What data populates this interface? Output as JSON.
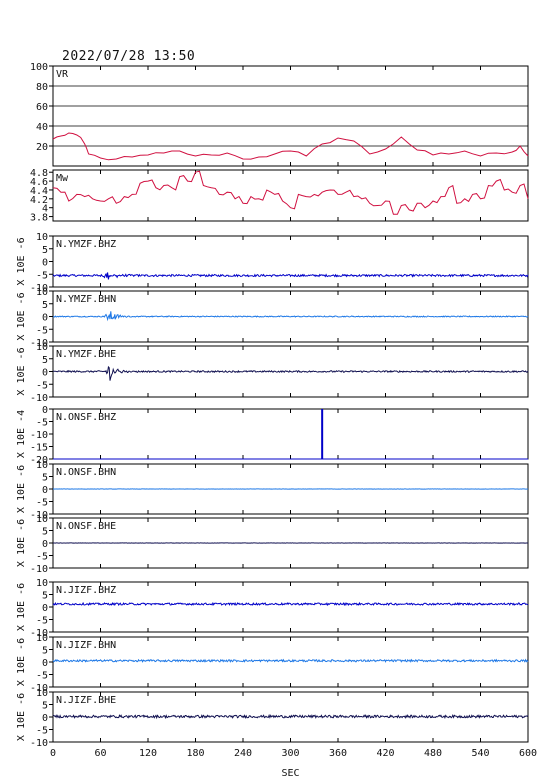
{
  "header": {
    "timestamp": "2022/07/28 13:50"
  },
  "colors": {
    "vr": "#d01040",
    "mw": "#d01040",
    "bhz": "#0000c8",
    "bhn": "#1e78e6",
    "bhe": "#101050",
    "grid": "#000000"
  },
  "chart_data": {
    "type": "line",
    "xlabel": "SEC",
    "xlim": [
      0,
      600
    ],
    "xticks": [
      "0",
      "60",
      "120",
      "180",
      "240",
      "300",
      "360",
      "420",
      "480",
      "540",
      "600"
    ],
    "panels": [
      {
        "id": "vr",
        "label": "VR",
        "ylabel": "",
        "ylim": [
          0,
          100
        ],
        "yticks": [
          "100",
          "80",
          "60",
          "40",
          "20"
        ],
        "grid": true,
        "color": "vr",
        "x": [
          0,
          10,
          20,
          30,
          40,
          45,
          60,
          80,
          100,
          120,
          140,
          160,
          180,
          200,
          220,
          240,
          260,
          280,
          300,
          320,
          340,
          360,
          380,
          400,
          420,
          440,
          460,
          480,
          500,
          520,
          540,
          560,
          580,
          590,
          600
        ],
        "y": [
          27,
          30,
          33,
          31,
          22,
          12,
          8,
          7,
          9,
          11,
          13,
          15,
          10,
          11,
          13,
          7,
          9,
          12,
          15,
          10,
          22,
          28,
          25,
          12,
          17,
          29,
          16,
          11,
          12,
          15,
          10,
          13,
          14,
          20,
          10
        ]
      },
      {
        "id": "mw",
        "label": "Mw",
        "ylabel": "",
        "ylim": [
          3.7,
          4.85
        ],
        "yticks": [
          "4.8",
          "4.6",
          "4.4",
          "4.2",
          "4",
          "3.8"
        ],
        "grid": false,
        "color": "mw",
        "x": [
          0,
          10,
          20,
          30,
          40,
          50,
          60,
          70,
          80,
          90,
          100,
          110,
          120,
          130,
          140,
          150,
          160,
          170,
          180,
          190,
          200,
          210,
          220,
          230,
          240,
          250,
          260,
          270,
          280,
          290,
          300,
          310,
          320,
          330,
          340,
          350,
          360,
          370,
          380,
          390,
          400,
          410,
          420,
          430,
          440,
          450,
          460,
          470,
          480,
          490,
          500,
          510,
          520,
          530,
          540,
          550,
          560,
          570,
          580,
          590,
          600
        ],
        "y": [
          4.45,
          4.35,
          4.15,
          4.3,
          4.25,
          4.2,
          4.15,
          4.2,
          4.1,
          4.25,
          4.3,
          4.55,
          4.6,
          4.45,
          4.5,
          4.45,
          4.7,
          4.6,
          4.8,
          4.5,
          4.45,
          4.3,
          4.35,
          4.2,
          4.1,
          4.25,
          4.2,
          4.4,
          4.3,
          4.15,
          4.0,
          4.3,
          4.25,
          4.3,
          4.35,
          4.4,
          4.3,
          4.35,
          4.25,
          4.2,
          4.1,
          4.05,
          4.15,
          3.85,
          4.05,
          3.95,
          4.1,
          4.0,
          4.15,
          4.25,
          4.45,
          4.1,
          4.2,
          4.3,
          4.2,
          4.5,
          4.6,
          4.4,
          4.35,
          4.5,
          4.2
        ]
      },
      {
        "id": "ymz-bhz",
        "label": "N.YMZF.BHZ",
        "ylabel": "X 10E -6",
        "ylim": [
          -10,
          10
        ],
        "yticks": [
          "10",
          "5",
          "0",
          "-5",
          "-10"
        ],
        "grid": false,
        "color": "bhz",
        "baseline": -5.5,
        "noise": 0.4,
        "burst": {
          "x": 70,
          "amp": 1.7
        },
        "spike": null
      },
      {
        "id": "ymz-bhn",
        "label": "N.YMZF.BHN",
        "ylabel": "X 10E -6",
        "ylim": [
          -10,
          10
        ],
        "yticks": [
          "10",
          "5",
          "0",
          "-5",
          "-10"
        ],
        "grid": false,
        "color": "bhn",
        "baseline": 0,
        "noise": 0.2,
        "burst": {
          "x": 72,
          "amp": 2.4
        },
        "spike": null
      },
      {
        "id": "ymz-bhe",
        "label": "N.YMZF.BHE",
        "ylabel": "X 10E -6",
        "ylim": [
          -10,
          10
        ],
        "yticks": [
          "10",
          "5",
          "0",
          "-5",
          "-10"
        ],
        "grid": false,
        "color": "bhe",
        "baseline": 0,
        "noise": 0.3,
        "burst": {
          "x": 72,
          "amp": 3.5
        },
        "spike": null
      },
      {
        "id": "ons-bhz",
        "label": "N.ONSF.BHZ",
        "ylabel": "X 10E -4",
        "ylim": [
          -20,
          0
        ],
        "yticks": [
          "0",
          "-5",
          "-10",
          "-15",
          "-20"
        ],
        "grid": false,
        "color": "bhz",
        "baseline": -20,
        "noise": 0,
        "burst": null,
        "spike": {
          "x": 340,
          "from": -20,
          "to": 0
        }
      },
      {
        "id": "ons-bhn",
        "label": "N.ONSF.BHN",
        "ylabel": "X 10E -6",
        "ylim": [
          -10,
          10
        ],
        "yticks": [
          "10",
          "5",
          "0",
          "-5",
          "-10"
        ],
        "grid": false,
        "color": "bhn",
        "baseline": 0,
        "noise": 0.05,
        "burst": null,
        "spike": null
      },
      {
        "id": "ons-bhe",
        "label": "N.ONSF.BHE",
        "ylabel": "X 10E -6",
        "ylim": [
          -10,
          10
        ],
        "yticks": [
          "10",
          "5",
          "0",
          "-5",
          "-10"
        ],
        "grid": false,
        "color": "bhe",
        "baseline": 0,
        "noise": 0.05,
        "burst": null,
        "spike": null
      },
      {
        "id": "jiz-bhz",
        "label": "N.JIZF.BHZ",
        "ylabel": "X 10E -6",
        "ylim": [
          -10,
          10
        ],
        "yticks": [
          "10",
          "5",
          "0",
          "-5",
          "-10"
        ],
        "grid": false,
        "color": "bhz",
        "baseline": 1.2,
        "noise": 0.4,
        "burst": null,
        "spike": null
      },
      {
        "id": "jiz-bhn",
        "label": "N.JIZF.BHN",
        "ylabel": "X 10E -6",
        "ylim": [
          -10,
          10
        ],
        "yticks": [
          "10",
          "5",
          "0",
          "-5",
          "-10"
        ],
        "grid": false,
        "color": "bhn",
        "baseline": 0.5,
        "noise": 0.4,
        "burst": null,
        "spike": null
      },
      {
        "id": "jiz-bhe",
        "label": "N.JIZF.BHE",
        "ylabel": "X 10E -6",
        "ylim": [
          -10,
          10
        ],
        "yticks": [
          "10",
          "5",
          "0",
          "-5",
          "-10"
        ],
        "grid": false,
        "color": "bhe",
        "baseline": 0.2,
        "noise": 0.5,
        "burst": null,
        "spike": null
      }
    ]
  }
}
